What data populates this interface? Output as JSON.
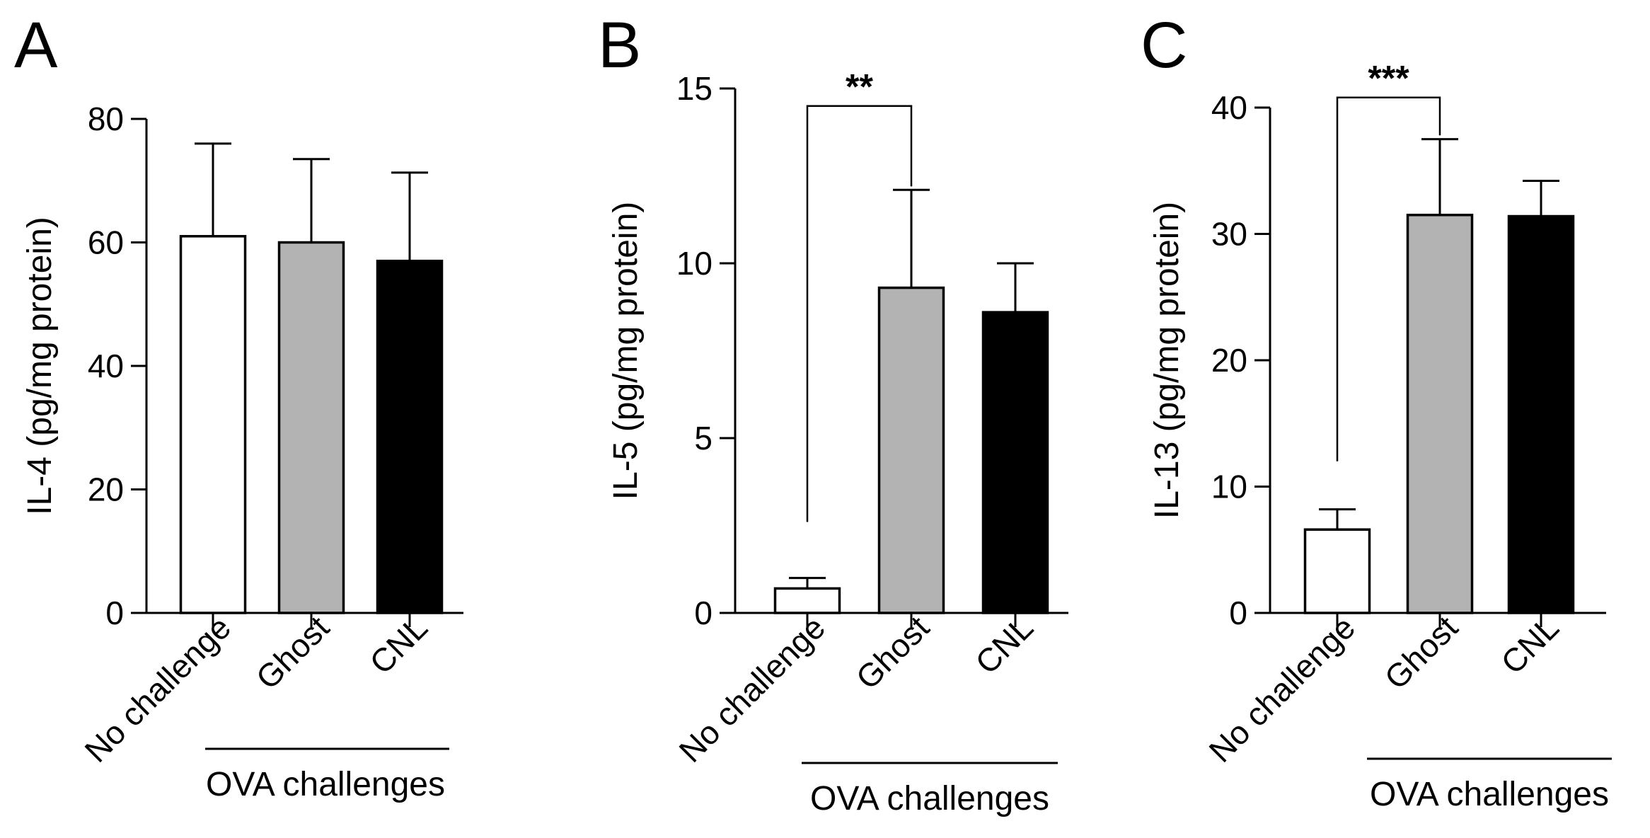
{
  "figure": {
    "panels": [
      {
        "letter": "A",
        "chart_data": {
          "type": "bar",
          "categories": [
            "No challenge",
            "Ghost",
            "CNL"
          ],
          "values": [
            61,
            60,
            57
          ],
          "errors": [
            15,
            13.5,
            14.3
          ],
          "bar_colors": [
            "#ffffff",
            "#b3b3b3",
            "#000000"
          ],
          "ylabel": "IL-4 (pg/mg protein)",
          "ylim": [
            0,
            80
          ],
          "yticks": [
            0,
            20,
            40,
            60,
            80
          ],
          "group_label": "OVA challenges",
          "group_categories": [
            "Ghost",
            "CNL"
          ],
          "significance": null
        }
      },
      {
        "letter": "B",
        "chart_data": {
          "type": "bar",
          "categories": [
            "No challenge",
            "Ghost",
            "CNL"
          ],
          "values": [
            0.7,
            9.3,
            8.6
          ],
          "errors": [
            0.3,
            2.8,
            1.4
          ],
          "bar_colors": [
            "#ffffff",
            "#b3b3b3",
            "#000000"
          ],
          "ylabel": "IL-5 (pg/mg protein)",
          "ylim": [
            0,
            15
          ],
          "yticks": [
            0,
            5,
            10,
            15
          ],
          "group_label": "OVA challenges",
          "group_categories": [
            "No challenge",
            "Ghost",
            "CNL"
          ],
          "significance": {
            "from": 0,
            "to": 1,
            "label": "**",
            "bracket_y": 14.5,
            "left_drop_to": 2.6,
            "right_drop_to": 12.2
          }
        }
      },
      {
        "letter": "C",
        "chart_data": {
          "type": "bar",
          "categories": [
            "No challenge",
            "Ghost",
            "CNL"
          ],
          "values": [
            6.6,
            31.5,
            31.4
          ],
          "errors": [
            1.6,
            6,
            2.8
          ],
          "bar_colors": [
            "#ffffff",
            "#b3b3b3",
            "#000000"
          ],
          "ylabel": "IL-13 (pg/mg protein)",
          "ylim": [
            0,
            40
          ],
          "yticks": [
            0,
            10,
            20,
            30,
            40
          ],
          "group_label": "OVA challenges",
          "group_categories": [
            "Ghost",
            "CNL"
          ],
          "significance": {
            "from": 0,
            "to": 1,
            "label": "***",
            "bracket_y": 40.8,
            "left_drop_to": 12,
            "right_drop_to": 37.8
          }
        }
      }
    ]
  }
}
